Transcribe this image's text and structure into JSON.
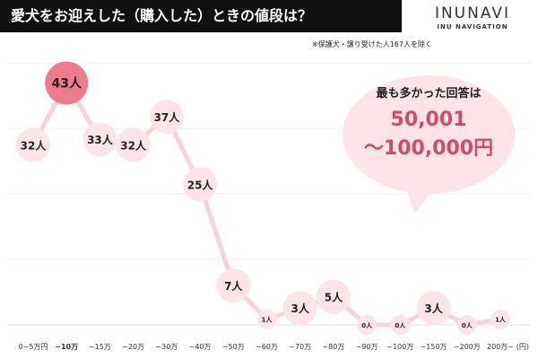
{
  "header": {
    "title": "愛犬をお迎えした（購入した）ときの値段は？",
    "logo_main": "INUNAVI",
    "logo_sub": "INU NAVIGATION",
    "note": "※保護犬・譲り受けた人167人を除く"
  },
  "callout": {
    "heading": "最も多かった回答は",
    "line1": "50,001",
    "line2": "〜100,000円"
  },
  "colors": {
    "line": "#f8d3da",
    "marker": "#fde4e8",
    "highlight": "#ee7a8c",
    "highlight_label": "#d6456b",
    "title_bg": "#111111"
  },
  "chart_data": {
    "type": "line",
    "x_unit": "(円)",
    "categories": [
      "0~5万円",
      "~10万",
      "~15万",
      "~20万",
      "~30万",
      "~40万",
      "~50万",
      "~60万",
      "~70万",
      "~80万",
      "~90万",
      "~100万",
      "~150万",
      "~200万",
      "200万~"
    ],
    "values": [
      32,
      43,
      33,
      32,
      37,
      25,
      7,
      1,
      3,
      5,
      0,
      0,
      3,
      0,
      1
    ],
    "point_labels": [
      "32人",
      "43人",
      "33人",
      "32人",
      "37人",
      "25人",
      "7人",
      "1人",
      "3人",
      "5人",
      "0人",
      "0人",
      "3人",
      "0人",
      "1人"
    ],
    "highlight_index": 1,
    "ylim": [
      0,
      45
    ],
    "grid": true
  }
}
